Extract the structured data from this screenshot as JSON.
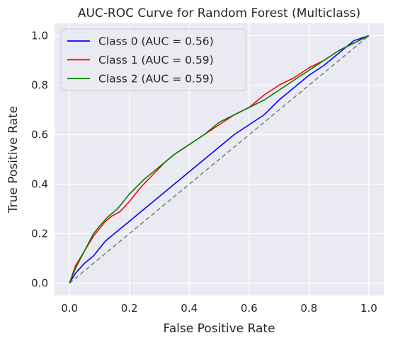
{
  "chart_data": {
    "type": "line",
    "title": "AUC-ROC Curve for Random Forest (Multiclass)",
    "xlabel": "False Positive Rate",
    "ylabel": "True Positive Rate",
    "xlim": [
      -0.05,
      1.05
    ],
    "ylim": [
      -0.05,
      1.05
    ],
    "xticks": [
      "0.0",
      "0.2",
      "0.4",
      "0.6",
      "0.8",
      "1.0"
    ],
    "yticks": [
      "0.0",
      "0.2",
      "0.4",
      "0.6",
      "0.8",
      "1.0"
    ],
    "grid": true,
    "legend_position": "upper-left",
    "background_color": "#eaeaf2",
    "series": [
      {
        "name": "Class 0 (AUC = 0.56)",
        "color": "#0000ff",
        "points": [
          [
            0,
            0
          ],
          [
            0.02,
            0.04
          ],
          [
            0.05,
            0.08
          ],
          [
            0.08,
            0.11
          ],
          [
            0.1,
            0.14
          ],
          [
            0.12,
            0.17
          ],
          [
            0.15,
            0.2
          ],
          [
            0.18,
            0.23
          ],
          [
            0.2,
            0.25
          ],
          [
            0.24,
            0.29
          ],
          [
            0.27,
            0.32
          ],
          [
            0.3,
            0.35
          ],
          [
            0.32,
            0.37
          ],
          [
            0.35,
            0.4
          ],
          [
            0.4,
            0.45
          ],
          [
            0.45,
            0.5
          ],
          [
            0.5,
            0.55
          ],
          [
            0.55,
            0.6
          ],
          [
            0.6,
            0.64
          ],
          [
            0.65,
            0.68
          ],
          [
            0.7,
            0.74
          ],
          [
            0.75,
            0.79
          ],
          [
            0.8,
            0.84
          ],
          [
            0.85,
            0.88
          ],
          [
            0.9,
            0.93
          ],
          [
            0.95,
            0.98
          ],
          [
            1,
            1
          ]
        ]
      },
      {
        "name": "Class 1 (AUC = 0.59)",
        "color": "#ff0000",
        "points": [
          [
            0,
            0
          ],
          [
            0.02,
            0.07
          ],
          [
            0.05,
            0.13
          ],
          [
            0.08,
            0.19
          ],
          [
            0.1,
            0.22
          ],
          [
            0.12,
            0.25
          ],
          [
            0.14,
            0.27
          ],
          [
            0.17,
            0.29
          ],
          [
            0.2,
            0.33
          ],
          [
            0.24,
            0.39
          ],
          [
            0.28,
            0.44
          ],
          [
            0.32,
            0.49
          ],
          [
            0.35,
            0.52
          ],
          [
            0.4,
            0.56
          ],
          [
            0.45,
            0.6
          ],
          [
            0.5,
            0.64
          ],
          [
            0.55,
            0.68
          ],
          [
            0.6,
            0.71
          ],
          [
            0.65,
            0.76
          ],
          [
            0.7,
            0.8
          ],
          [
            0.75,
            0.83
          ],
          [
            0.8,
            0.87
          ],
          [
            0.85,
            0.9
          ],
          [
            0.9,
            0.94
          ],
          [
            0.95,
            0.97
          ],
          [
            1,
            1
          ]
        ]
      },
      {
        "name": "Class 2 (AUC = 0.59)",
        "color": "#008000",
        "points": [
          [
            0,
            0
          ],
          [
            0.02,
            0.06
          ],
          [
            0.05,
            0.13
          ],
          [
            0.08,
            0.2
          ],
          [
            0.1,
            0.23
          ],
          [
            0.13,
            0.27
          ],
          [
            0.16,
            0.3
          ],
          [
            0.2,
            0.36
          ],
          [
            0.25,
            0.42
          ],
          [
            0.3,
            0.47
          ],
          [
            0.35,
            0.52
          ],
          [
            0.4,
            0.56
          ],
          [
            0.45,
            0.6
          ],
          [
            0.5,
            0.65
          ],
          [
            0.55,
            0.68
          ],
          [
            0.6,
            0.71
          ],
          [
            0.65,
            0.74
          ],
          [
            0.7,
            0.78
          ],
          [
            0.75,
            0.82
          ],
          [
            0.8,
            0.86
          ],
          [
            0.85,
            0.9
          ],
          [
            0.9,
            0.94
          ],
          [
            0.95,
            0.97
          ],
          [
            1,
            1
          ]
        ]
      },
      {
        "color": "#808080",
        "dashed": true,
        "points": [
          [
            0,
            0
          ],
          [
            1,
            1
          ]
        ]
      }
    ]
  }
}
